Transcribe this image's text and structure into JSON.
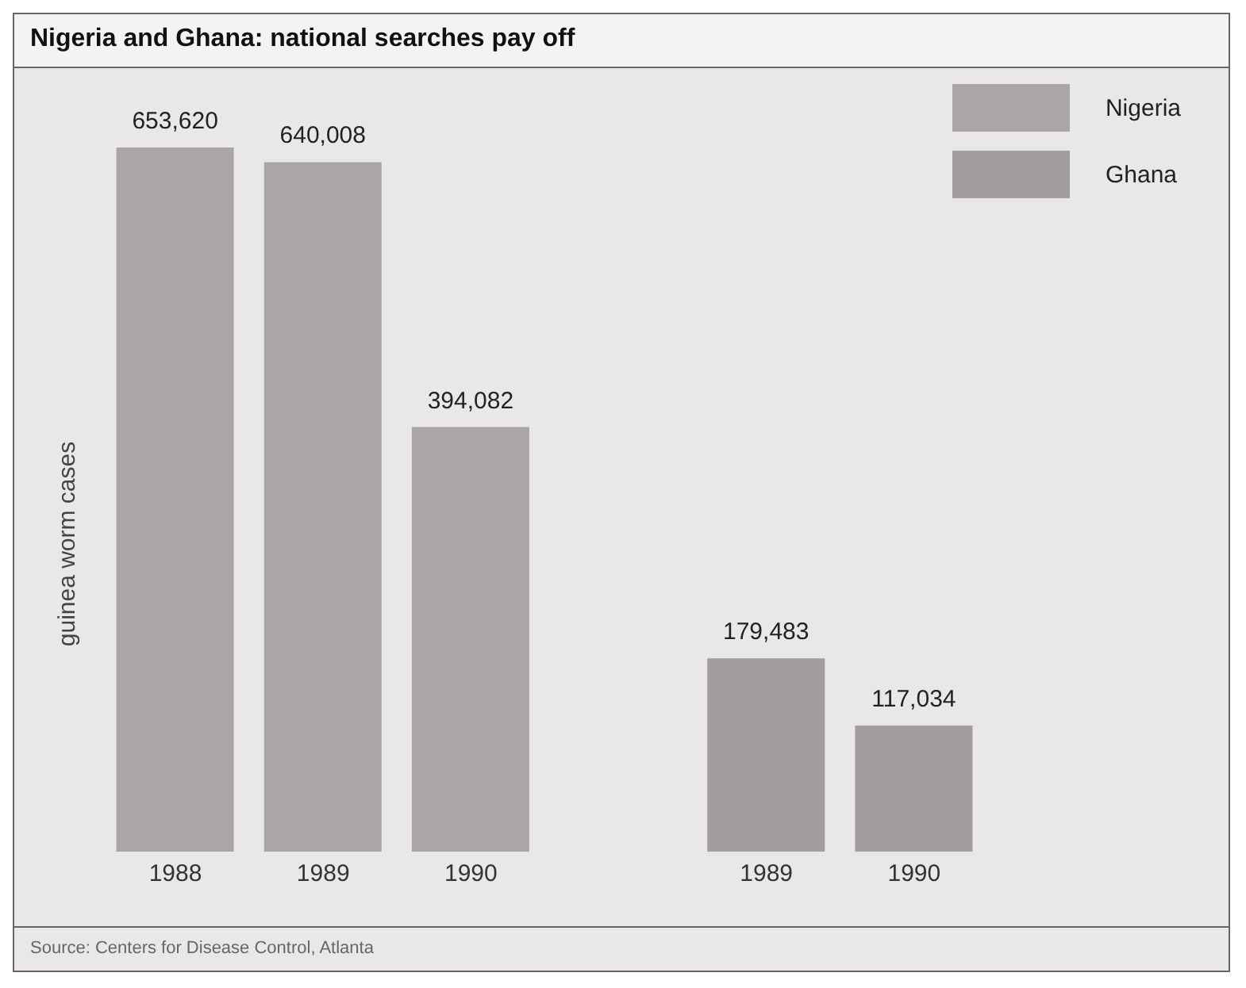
{
  "chart_data": {
    "type": "bar",
    "title": "Nigeria and Ghana: national searches pay off",
    "ylabel": "guinea worm cases",
    "categories": [
      "1988",
      "1989",
      "1990",
      null,
      "1989",
      "1990"
    ],
    "series": [
      {
        "name": "Nigeria",
        "color": "#aaa6a7",
        "values": [
          653620,
          640008,
          394082,
          null,
          null,
          null
        ],
        "value_labels": [
          "653,620",
          "640,008",
          "394,082",
          null,
          null,
          null
        ]
      },
      {
        "name": "Ghana",
        "color": "#a29e9f",
        "values": [
          null,
          null,
          null,
          null,
          179483,
          117034
        ],
        "value_labels": [
          null,
          null,
          null,
          null,
          "179,483",
          "117,034"
        ]
      }
    ],
    "stacked": true,
    "legend": "top right",
    "grid": false,
    "annotations": [
      "Source: Centers for Disease Control, Atlanta"
    ]
  }
}
